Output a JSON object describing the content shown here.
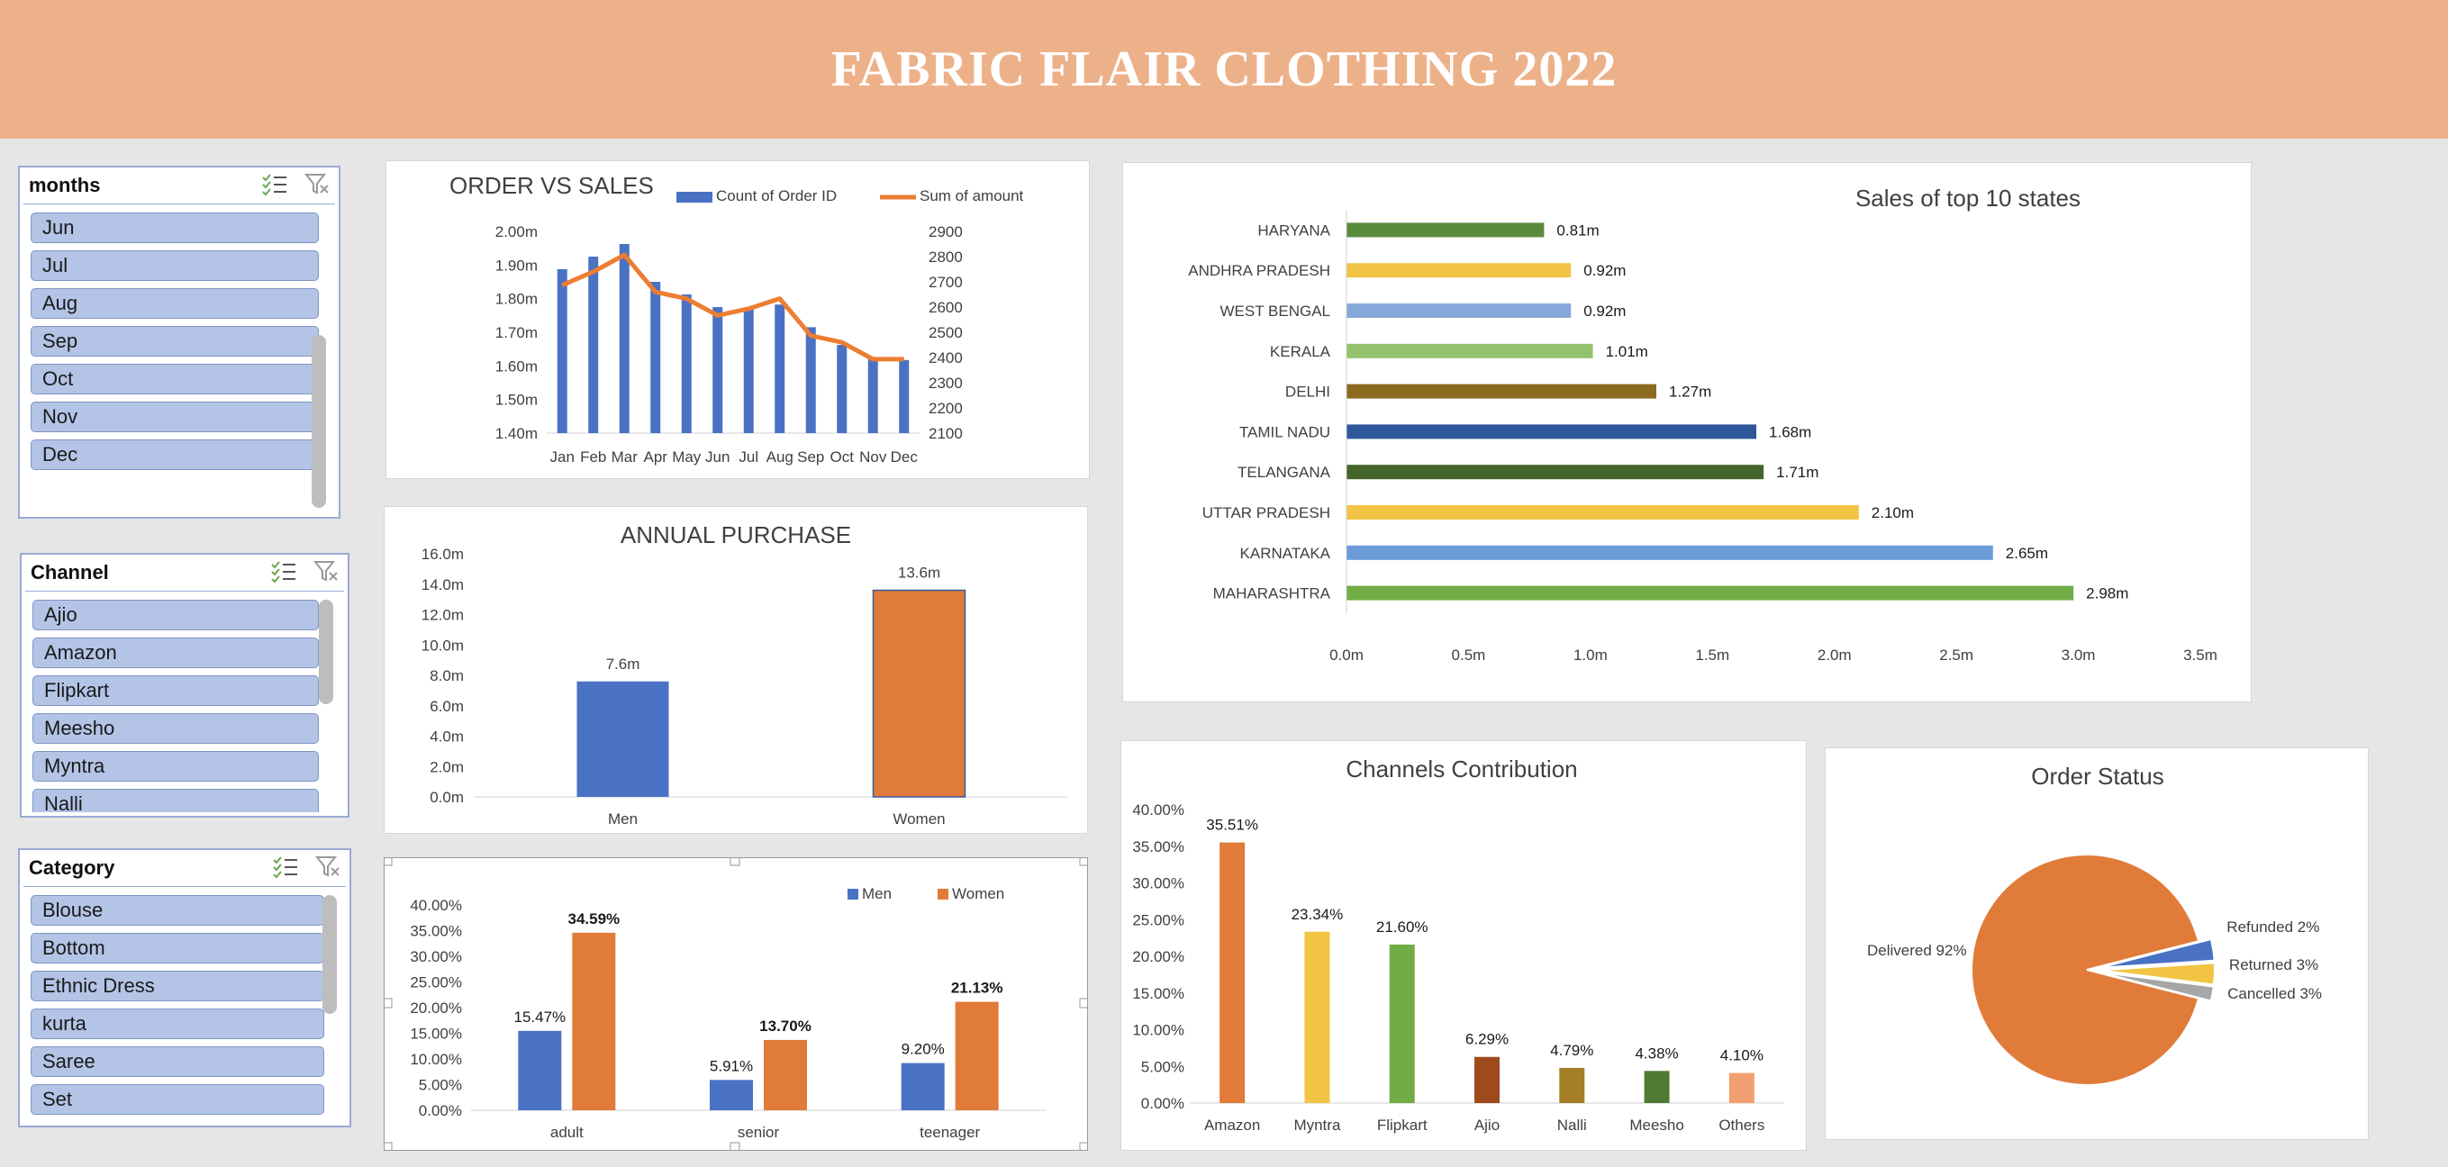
{
  "title": "FABRIC FLAIR CLOTHING 2022",
  "slicers": [
    {
      "id": "months",
      "header": "months",
      "items": [
        "Jun",
        "Jul",
        "Aug",
        "Sep",
        "Oct",
        "Nov",
        "Dec"
      ]
    },
    {
      "id": "channel",
      "header": "Channel",
      "items": [
        "Ajio",
        "Amazon",
        "Flipkart",
        "Meesho",
        "Myntra",
        "Nalli"
      ]
    },
    {
      "id": "category",
      "header": "Category",
      "items": [
        "Blouse",
        "Bottom",
        "Ethnic Dress",
        "kurta",
        "Saree",
        "Set"
      ]
    }
  ],
  "chart_data": [
    {
      "id": "order_vs_sales",
      "type": "bar+line",
      "title": "ORDER VS SALES",
      "categories": [
        "Jan",
        "Feb",
        "Mar",
        "Apr",
        "May",
        "Jun",
        "Jul",
        "Aug",
        "Sep",
        "Oct",
        "Nov",
        "Dec"
      ],
      "series": [
        {
          "name": "Count of Order ID",
          "type": "bar",
          "axis": "right",
          "color": "#4a72c4",
          "values": [
            2750,
            2800,
            2850,
            2700,
            2650,
            2600,
            2590,
            2610,
            2520,
            2450,
            2400,
            2390
          ]
        },
        {
          "name": "Sum of amount",
          "type": "line",
          "axis": "left",
          "color": "#ed7d31",
          "values": [
            1.84,
            1.88,
            1.93,
            1.82,
            1.8,
            1.75,
            1.77,
            1.8,
            1.69,
            1.67,
            1.62,
            1.62
          ]
        }
      ],
      "y_left": {
        "ticks": [
          "1.40m",
          "1.50m",
          "1.60m",
          "1.70m",
          "1.80m",
          "1.90m",
          "2.00m"
        ],
        "min": 1.4,
        "max": 2.0
      },
      "y_right": {
        "ticks": [
          "2100",
          "2200",
          "2300",
          "2400",
          "2500",
          "2600",
          "2700",
          "2800",
          "2900"
        ],
        "min": 2100,
        "max": 2900
      }
    },
    {
      "id": "annual_purchase",
      "type": "bar",
      "title": "ANNUAL PURCHASE",
      "categories": [
        "Men",
        "Women"
      ],
      "values": [
        7.6,
        13.6
      ],
      "labels": [
        "7.6m",
        "13.6m"
      ],
      "colors": [
        "#4a72c4",
        "#e07b39"
      ],
      "ylim": [
        0,
        16
      ],
      "yticks": [
        "0.0m",
        "2.0m",
        "4.0m",
        "6.0m",
        "8.0m",
        "10.0m",
        "12.0m",
        "14.0m",
        "16.0m"
      ]
    },
    {
      "id": "age_group",
      "type": "bar",
      "categories": [
        "adult",
        "senior",
        "teenager"
      ],
      "series": [
        {
          "name": "Men",
          "color": "#4a72c4",
          "values": [
            15.47,
            5.91,
            9.2
          ],
          "labels": [
            "15.47%",
            "5.91%",
            "9.20%"
          ]
        },
        {
          "name": "Women",
          "color": "#e07b39",
          "values": [
            34.59,
            13.7,
            21.13
          ],
          "labels": [
            "34.59%",
            "13.70%",
            "21.13%"
          ]
        }
      ],
      "ylim": [
        0,
        40
      ],
      "yticks": [
        "0.00%",
        "5.00%",
        "10.00%",
        "15.00%",
        "20.00%",
        "25.00%",
        "30.00%",
        "35.00%",
        "40.00%"
      ]
    },
    {
      "id": "top_states",
      "type": "bar",
      "orientation": "horizontal",
      "title": "Sales of top 10 states",
      "categories": [
        "HARYANA",
        "ANDHRA PRADESH",
        "WEST BENGAL",
        "KERALA",
        "DELHI",
        "TAMIL NADU",
        "TELANGANA",
        "UTTAR PRADESH",
        "KARNATAKA",
        "MAHARASHTRA"
      ],
      "values": [
        0.81,
        0.92,
        0.92,
        1.01,
        1.27,
        1.68,
        1.71,
        2.1,
        2.65,
        2.98
      ],
      "labels": [
        "0.81m",
        "0.92m",
        "0.92m",
        "1.01m",
        "1.27m",
        "1.68m",
        "1.71m",
        "2.10m",
        "2.65m",
        "2.98m"
      ],
      "colors": [
        "#5a8a3c",
        "#f2c443",
        "#86a8d8",
        "#94c26c",
        "#8c6b20",
        "#2e579b",
        "#44652a",
        "#f2c443",
        "#6b9bd6",
        "#70ad47"
      ],
      "xlim": [
        0,
        3.5
      ],
      "xticks": [
        "0.0m",
        "0.5m",
        "1.0m",
        "1.5m",
        "2.0m",
        "2.5m",
        "3.0m",
        "3.5m"
      ]
    },
    {
      "id": "channels",
      "type": "bar",
      "title": "Channels Contribution",
      "categories": [
        "Amazon",
        "Myntra",
        "Flipkart",
        "Ajio",
        "Nalli",
        "Meesho",
        "Others"
      ],
      "values": [
        35.51,
        23.34,
        21.6,
        6.29,
        4.79,
        4.38,
        4.1
      ],
      "labels": [
        "35.51%",
        "23.34%",
        "21.60%",
        "6.29%",
        "4.79%",
        "4.38%",
        "4.10%"
      ],
      "colors": [
        "#e07b39",
        "#f2c443",
        "#70ad47",
        "#9e4a1c",
        "#a47f26",
        "#4f7a33",
        "#f0a070"
      ],
      "ylim": [
        0,
        40
      ],
      "yticks": [
        "0.00%",
        "5.00%",
        "10.00%",
        "15.00%",
        "20.00%",
        "25.00%",
        "30.00%",
        "35.00%",
        "40.00%"
      ]
    },
    {
      "id": "order_status",
      "type": "pie",
      "title": "Order Status",
      "slices": [
        {
          "name": "Delivered",
          "value": 92,
          "label": "Delivered 92%",
          "color": "#e07b39"
        },
        {
          "name": "Cancelled",
          "value": 3,
          "label": "Cancelled 3%",
          "color": "#4a72c4"
        },
        {
          "name": "Returned",
          "value": 3,
          "label": "Returned 3%",
          "color": "#f2c443"
        },
        {
          "name": "Refunded",
          "value": 2,
          "label": "Refunded 2%",
          "color": "#a6a6a6"
        }
      ]
    }
  ]
}
